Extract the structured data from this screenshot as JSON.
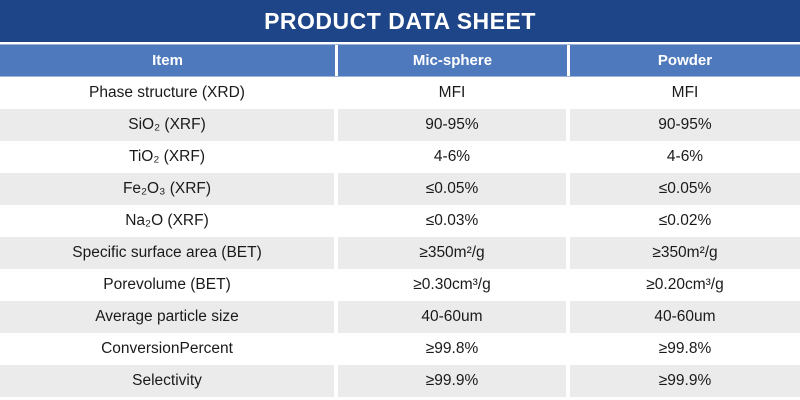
{
  "title": "PRODUCT DATA SHEET",
  "colors": {
    "title_bar": "#1D4588",
    "header_row": "#4F79BD",
    "header_hairline": "#9FB4D8",
    "row_alt": "#EBEBEB",
    "body_text": "#1A1A1A",
    "header_text": "#FFFFFF"
  },
  "table": {
    "columns": [
      "Item",
      "Mic-sphere",
      "Powder"
    ],
    "rows": [
      {
        "item": "Phase structure (XRD)",
        "mic_sphere": "MFI",
        "powder": "MFI"
      },
      {
        "item": "SiO₂ (XRF)",
        "mic_sphere": "90-95%",
        "powder": "90-95%"
      },
      {
        "item": "TiO₂ (XRF)",
        "mic_sphere": "4-6%",
        "powder": "4-6%"
      },
      {
        "item": "Fe₂O₃ (XRF)",
        "mic_sphere": "≤0.05%",
        "powder": "≤0.05%"
      },
      {
        "item": "Na₂O (XRF)",
        "mic_sphere": "≤0.03%",
        "powder": "≤0.02%"
      },
      {
        "item": "Specific surface area (BET)",
        "mic_sphere": "≥350m²/g",
        "powder": "≥350m²/g"
      },
      {
        "item": "Porevolume (BET)",
        "mic_sphere": "≥0.30cm³/g",
        "powder": "≥0.20cm³/g"
      },
      {
        "item": "Average particle size",
        "mic_sphere": "40-60um",
        "powder": "40-60um"
      },
      {
        "item": "ConversionPercent",
        "mic_sphere": "≥99.8%",
        "powder": "≥99.8%"
      },
      {
        "item": "Selectivity",
        "mic_sphere": "≥99.9%",
        "powder": "≥99.9%"
      }
    ]
  }
}
